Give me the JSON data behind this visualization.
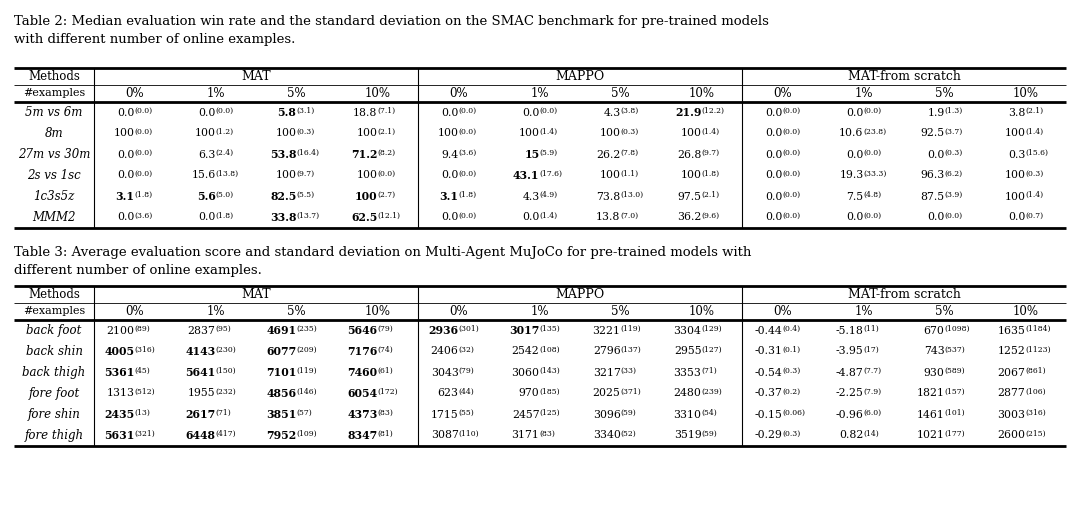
{
  "table2_caption_line1": "Table 2: Median evaluation win rate and the standard deviation on the SMAC benchmark for pre-trained models",
  "table2_caption_line2": "with different number of online examples.",
  "table3_caption_line1": "Table 3: Average evaluation score and standard deviation on Multi-Agent MuJoCo for pre-trained models with",
  "table3_caption_line2": "different number of online examples.",
  "col_groups": [
    "MAT",
    "MAPPO",
    "MAT-from scratch"
  ],
  "sub_cols": [
    "0%",
    "1%",
    "5%",
    "10%"
  ],
  "table2_rows": [
    {
      "method": "5m vs 6m",
      "cols": [
        "0.0|(0.0)",
        "0.0|(0.0)",
        "B:5.8|(3.1)",
        "18.8|(7.1)",
        "0.0|(0.0)",
        "0.0|(0.0)",
        "4.3|(3.8)",
        "B:21.9|(12.2)",
        "0.0|(0.0)",
        "0.0|(0.0)",
        "1.9|(1.3)",
        "3.8|(2.1)"
      ]
    },
    {
      "method": "8m",
      "cols": [
        "100|(0.0)",
        "100|(1.2)",
        "100|(0.3)",
        "100|(2.1)",
        "100|(0.0)",
        "100|(1.4)",
        "100|(0.3)",
        "100|(1.4)",
        "0.0|(0.0)",
        "10.6|(23.8)",
        "92.5|(3.7)",
        "100|(1.4)"
      ]
    },
    {
      "method": "27m vs 30m",
      "cols": [
        "0.0|(0.0)",
        "6.3|(2.4)",
        "B:53.8|(16.4)",
        "B:71.2|(8.2)",
        "9.4|(3.6)",
        "B:15|(5.9)",
        "26.2|(7.8)",
        "26.8|(9.7)",
        "0.0|(0.0)",
        "0.0|(0.0)",
        "0.0|(0.3)",
        "0.3|(15.6)"
      ]
    },
    {
      "method": "2s vs 1sc",
      "cols": [
        "0.0|(0.0)",
        "15.6|(13.8)",
        "100|(9.7)",
        "100|(0.0)",
        "0.0|(0.0)",
        "B:43.1|(17.6)",
        "100|(1.1)",
        "100|(1.8)",
        "0.0|(0.0)",
        "19.3|(33.3)",
        "96.3|(6.2)",
        "100|(0.3)"
      ]
    },
    {
      "method": "1c3s5z",
      "cols": [
        "B:3.1|(1.8)",
        "B:5.6|(5.0)",
        "B:82.5|(5.5)",
        "B:100|(2.7)",
        "B:3.1|(1.8)",
        "4.3|(4.9)",
        "73.8|(13.0)",
        "97.5|(2.1)",
        "0.0|(0.0)",
        "7.5|(4.8)",
        "87.5|(3.9)",
        "100|(1.4)"
      ]
    },
    {
      "method": "MMM2",
      "cols": [
        "0.0|(3.6)",
        "0.0|(1.8)",
        "B:33.8|(13.7)",
        "B:62.5|(12.1)",
        "0.0|(0.0)",
        "0.0|(1.4)",
        "13.8|(7.0)",
        "36.2|(9.6)",
        "0.0|(0.0)",
        "0.0|(0.0)",
        "0.0|(0.0)",
        "0.0|(0.7)"
      ]
    }
  ],
  "table3_rows": [
    {
      "method": "back foot",
      "cols": [
        "2100|(89)",
        "2837|(95)",
        "B:4691|(235)",
        "B:5646|(79)",
        "B:2936|(301)",
        "B:3017|(135)",
        "3221|(119)",
        "3304|(129)",
        "-0.44|(0.4)",
        "-5.18|(11)",
        "670|(1098)",
        "1635|(1184)"
      ]
    },
    {
      "method": "back shin",
      "cols": [
        "B:4005|(316)",
        "B:4143|(230)",
        "B:6077|(209)",
        "B:7176|(74)",
        "2406|(32)",
        "2542|(108)",
        "2796|(137)",
        "2955|(127)",
        "-0.31|(0.1)",
        "-3.95|(17)",
        "743|(537)",
        "1252|(1123)"
      ]
    },
    {
      "method": "back thigh",
      "cols": [
        "B:5361|(45)",
        "B:5641|(150)",
        "B:7101|(119)",
        "B:7460|(61)",
        "3043|(79)",
        "3060|(143)",
        "3217|(33)",
        "3353|(71)",
        "-0.54|(0.3)",
        "-4.87|(7.7)",
        "930|(589)",
        "2067|(861)"
      ]
    },
    {
      "method": "fore foot",
      "cols": [
        "1313|(512)",
        "1955|(232)",
        "B:4856|(146)",
        "B:6054|(172)",
        "623|(44)",
        "970|(185)",
        "2025|(371)",
        "2480|(239)",
        "-0.37|(0.2)",
        "-2.25|(7.9)",
        "1821|(157)",
        "2877|(106)"
      ]
    },
    {
      "method": "fore shin",
      "cols": [
        "B:2435|(13)",
        "B:2617|(71)",
        "B:3851|(57)",
        "B:4373|(83)",
        "1715|(55)",
        "2457|(125)",
        "3096|(59)",
        "3310|(54)",
        "-0.15|(0.06)",
        "-0.96|(6.0)",
        "1461|(101)",
        "3003|(316)"
      ]
    },
    {
      "method": "fore thigh",
      "cols": [
        "B:5631|(321)",
        "B:6448|(417)",
        "B:7952|(109)",
        "B:8347|(81)",
        "3087|(110)",
        "3171|(83)",
        "3340|(52)",
        "3519|(59)",
        "-0.29|(0.3)",
        "0.82|(14)",
        "1021|(177)",
        "2600|(215)"
      ]
    }
  ]
}
